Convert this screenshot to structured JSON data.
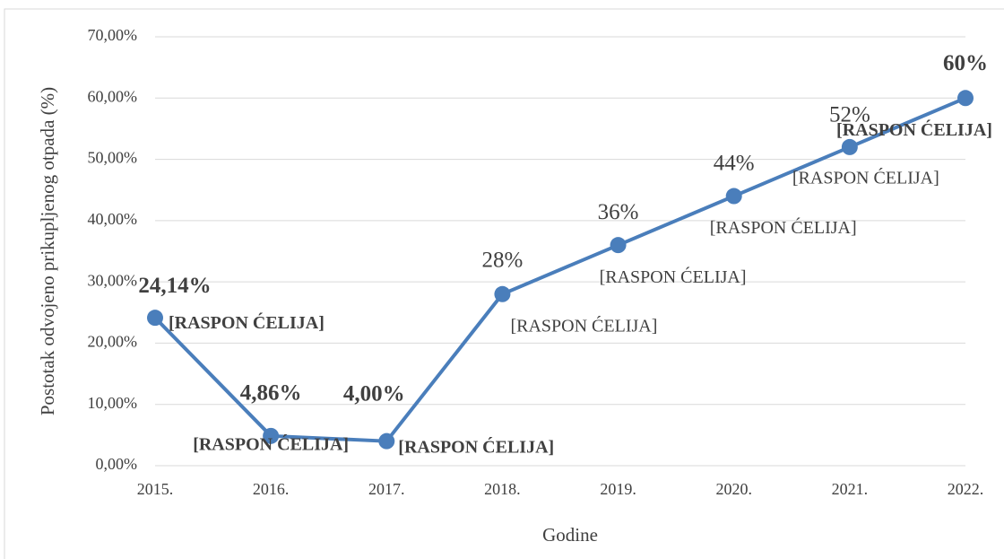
{
  "chart_data": {
    "type": "line",
    "xlabel": "Godine",
    "ylabel": "Postotak odvojeno prikupljenog otpada (%)",
    "categories": [
      "2015.",
      "2016.",
      "2017.",
      "2018.",
      "2019.",
      "2020.",
      "2021.",
      "2022."
    ],
    "series": [
      {
        "name": null,
        "color": "#4a7ebb",
        "values": [
          24.14,
          4.86,
          4.0,
          28,
          36,
          44,
          52,
          60
        ],
        "value_labels": [
          "24,14%",
          "4,86%",
          "4,00%",
          "28%",
          "36%",
          "44%",
          "52%",
          "60%"
        ]
      }
    ],
    "annotations": [
      "[RASPON ĆELIJA]",
      "[RASPON ĆELIJA]",
      "[RASPON ĆELIJA]",
      "[RASPON ĆELIJA]",
      "[RASPON ĆELIJA]",
      "[RASPON ĆELIJA]",
      "[RASPON ĆELIJA]",
      "[RASPON ĆELIJA]"
    ],
    "ylim": [
      0,
      70
    ],
    "yticks": [
      {
        "value": 0,
        "label": "0,00%"
      },
      {
        "value": 10,
        "label": "10,00%"
      },
      {
        "value": 20,
        "label": "20,00%"
      },
      {
        "value": 30,
        "label": "30,00%"
      },
      {
        "value": 40,
        "label": "40,00%"
      },
      {
        "value": 50,
        "label": "50,00%"
      },
      {
        "value": 60,
        "label": "60,00%"
      },
      {
        "value": 70,
        "label": "70,00%"
      }
    ],
    "grid": true
  }
}
